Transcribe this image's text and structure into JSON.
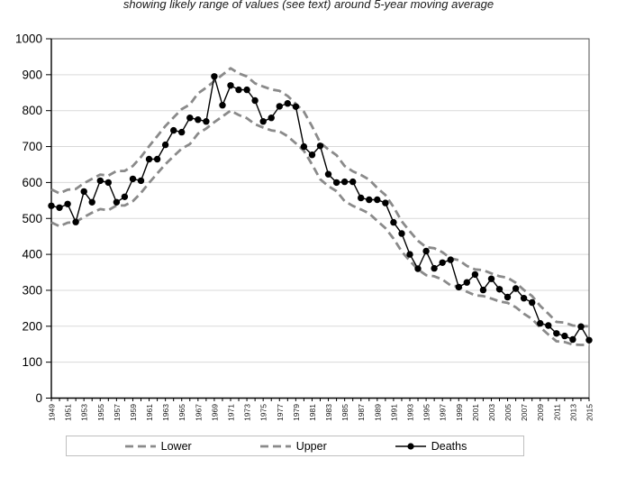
{
  "title": {
    "subtitle": "showing likely range of values (see text) around 5-year moving average"
  },
  "legend": {
    "items": [
      {
        "label": "Lower"
      },
      {
        "label": "Upper"
      },
      {
        "label": "Deaths"
      }
    ]
  },
  "chart_data": {
    "type": "line",
    "title": "",
    "xlabel": "",
    "ylabel": "",
    "ylim": [
      0,
      1000
    ],
    "y_tick_labels": [
      "0",
      "100",
      "200",
      "300",
      "400",
      "500",
      "600",
      "700",
      "800",
      "900",
      "1000"
    ],
    "x": [
      1949,
      1950,
      1951,
      1952,
      1953,
      1954,
      1955,
      1956,
      1957,
      1958,
      1959,
      1960,
      1961,
      1962,
      1963,
      1964,
      1965,
      1966,
      1967,
      1968,
      1969,
      1970,
      1971,
      1972,
      1973,
      1974,
      1975,
      1976,
      1977,
      1978,
      1979,
      1980,
      1981,
      1982,
      1983,
      1984,
      1985,
      1986,
      1987,
      1988,
      1989,
      1990,
      1991,
      1992,
      1993,
      1994,
      1995,
      1996,
      1997,
      1998,
      1999,
      2000,
      2001,
      2002,
      2003,
      2004,
      2005,
      2006,
      2007,
      2008,
      2009,
      2010,
      2011,
      2012,
      2013,
      2014,
      2015
    ],
    "x_tick_labels": [
      "1949",
      "1951",
      "1953",
      "1955",
      "1957",
      "1959",
      "1961",
      "1963",
      "1965",
      "1967",
      "1969",
      "1971",
      "1973",
      "1975",
      "1977",
      "1979",
      "1981",
      "1983",
      "1985",
      "1987",
      "1989",
      "1991",
      "1993",
      "1995",
      "1997",
      "1999",
      "2001",
      "2003",
      "2005",
      "2007",
      "2009",
      "2011",
      "2013",
      "2015"
    ],
    "legend_position": "bottom",
    "grid": "horizontal",
    "series": [
      {
        "name": "Lower",
        "style": "dashed",
        "values": [
          489,
          478,
          488,
          490,
          504,
          516,
          526,
          523,
          536,
          536,
          548,
          571,
          599,
          625,
          651,
          673,
          694,
          707,
          736,
          750,
          768,
          784,
          800,
          788,
          779,
          762,
          753,
          745,
          742,
          729,
          709,
          688,
          650,
          609,
          590,
          576,
          548,
          535,
          525,
          514,
          493,
          473,
          444,
          408,
          382,
          358,
          342,
          339,
          330,
          314,
          310,
          296,
          286,
          284,
          277,
          269,
          265,
          253,
          235,
          220,
          197,
          177,
          158,
          156,
          149,
          148,
          148
        ]
      },
      {
        "name": "Upper",
        "style": "dashed",
        "values": [
          581,
          570,
          580,
          582,
          598,
          610,
          622,
          619,
          632,
          632,
          646,
          671,
          701,
          729,
          757,
          781,
          804,
          817,
          848,
          864,
          882,
          900,
          918,
          904,
          895,
          876,
          867,
          859,
          855,
          841,
          819,
          797,
          756,
          711,
          692,
          676,
          646,
          631,
          621,
          608,
          585,
          565,
          532,
          492,
          464,
          438,
          420,
          417,
          406,
          389,
          384,
          368,
          358,
          356,
          347,
          339,
          335,
          321,
          301,
          284,
          257,
          235,
          212,
          210,
          202,
          200,
          200
        ]
      },
      {
        "name": "Deaths",
        "style": "solid-markers",
        "values": [
          535,
          530,
          540,
          490,
          575,
          545,
          605,
          600,
          545,
          560,
          610,
          605,
          665,
          665,
          705,
          745,
          740,
          780,
          775,
          770,
          895,
          815,
          870,
          858,
          858,
          828,
          770,
          780,
          812,
          820,
          811,
          700,
          677,
          702,
          623,
          600,
          602,
          602,
          557,
          552,
          552,
          543,
          489,
          458,
          400,
          360,
          409,
          361,
          377,
          385,
          309,
          322,
          344,
          301,
          332,
          303,
          281,
          305,
          278,
          266,
          208,
          202,
          180,
          173,
          163,
          199,
          161
        ]
      }
    ],
    "colors": {
      "band": "#8a8a8a",
      "deaths": "#000000",
      "grid": "#d9d9d9",
      "axis": "#000000",
      "plot_border": "#4d4d4d"
    }
  }
}
